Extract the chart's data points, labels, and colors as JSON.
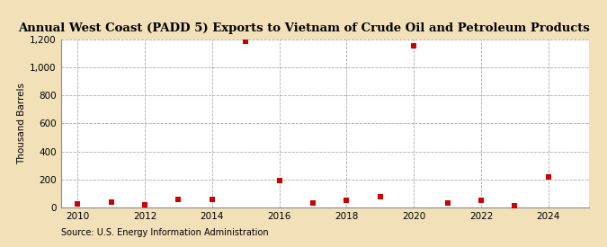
{
  "title": "Annual West Coast (PADD 5) Exports to Vietnam of Crude Oil and Petroleum Products",
  "ylabel": "Thousand Barrels",
  "source": "Source: U.S. Energy Information Administration",
  "background_color": "#f2e0b8",
  "plot_background_color": "#ffffff",
  "years": [
    2010,
    2011,
    2012,
    2013,
    2014,
    2015,
    2016,
    2017,
    2018,
    2019,
    2020,
    2021,
    2022,
    2023,
    2024
  ],
  "values": [
    25,
    40,
    20,
    55,
    55,
    1190,
    195,
    35,
    50,
    80,
    1155,
    30,
    50,
    15,
    215
  ],
  "marker_color": "#cc0000",
  "marker": "s",
  "marker_size": 4,
  "ylim": [
    0,
    1200
  ],
  "yticks": [
    0,
    200,
    400,
    600,
    800,
    1000,
    1200
  ],
  "ytick_labels": [
    "0",
    "200",
    "400",
    "600",
    "800",
    "1,000",
    "1,200"
  ],
  "xlim": [
    2009.5,
    2025.2
  ],
  "xticks": [
    2010,
    2012,
    2014,
    2016,
    2018,
    2020,
    2022,
    2024
  ],
  "grid_color": "#aaaaaa",
  "grid_style": "--",
  "title_fontsize": 9.5,
  "label_fontsize": 7.5,
  "tick_fontsize": 7.5,
  "source_fontsize": 7.0
}
